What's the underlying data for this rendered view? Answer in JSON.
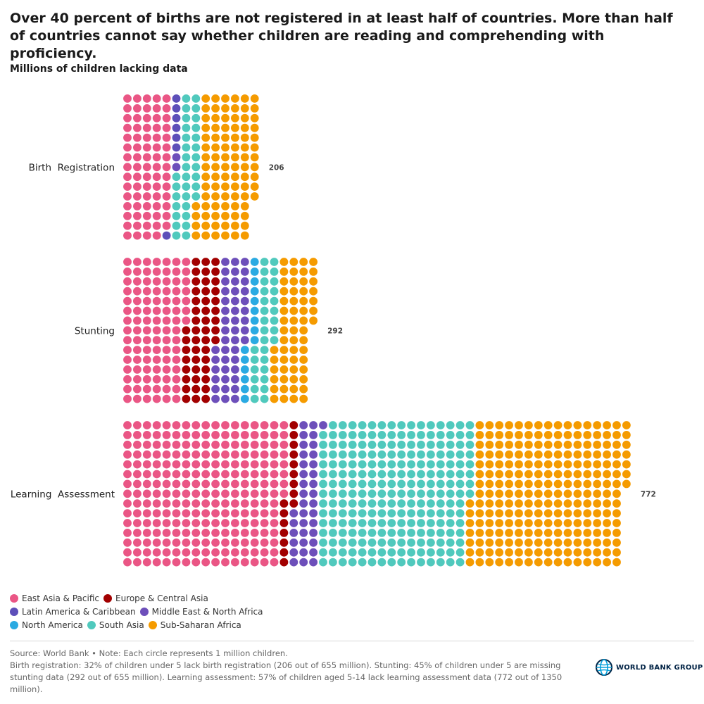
{
  "title": "Over 40 percent of births are not registered in at least half of countries. More than half of countries cannot say whether children are reading and comprehending with proficiency.",
  "subtitle": "Millions of children lacking data",
  "colors": {
    "East Asia & Pacific": "#ea5685",
    "Europe & Central Asia": "#a20000",
    "Latin America & Caribbean": "#5d4fb9",
    "Middle East & North Africa": "#6d4fba",
    "North America": "#2aaae2",
    "South Asia": "#50c9bd",
    "Sub-Saharan Africa": "#f59b00"
  },
  "chart_data": {
    "type": "waffle",
    "unit": "Each circle represents 1 million children",
    "categories": [
      "Birth  Registration",
      "Stunting",
      "Learning  Assessment"
    ],
    "totals": [
      206,
      292,
      772
    ],
    "series": [
      {
        "name": "East Asia & Pacific",
        "values": [
          74,
          97,
          248
        ]
      },
      {
        "name": "Europe & Central Asia",
        "values": [
          0,
          47,
          16
        ]
      },
      {
        "name": "Latin America & Caribbean",
        "values": [
          7,
          0,
          0
        ]
      },
      {
        "name": "Middle East & North Africa",
        "values": [
          2,
          45,
          37
        ]
      },
      {
        "name": "North America",
        "values": [
          0,
          15,
          0
        ]
      },
      {
        "name": "South Asia",
        "values": [
          33,
          30,
          232
        ]
      },
      {
        "name": "Sub-Saharan Africa",
        "values": [
          90,
          58,
          239
        ]
      }
    ]
  },
  "legend": {
    "rows": [
      [
        {
          "label": "East Asia & Pacific",
          "color": "#ea5685"
        },
        {
          "label": "Europe & Central Asia",
          "color": "#a20000"
        }
      ],
      [
        {
          "label": "Latin America & Caribbean",
          "color": "#5d4fb9"
        },
        {
          "label": "Middle East & North Africa",
          "color": "#6d4fba"
        }
      ],
      [
        {
          "label": "North America",
          "color": "#2aaae2"
        },
        {
          "label": "South Asia",
          "color": "#50c9bd"
        },
        {
          "label": "Sub-Saharan Africa",
          "color": "#f59b00"
        }
      ]
    ]
  },
  "footer": {
    "source": "Source: World Bank • Note: Each circle represents 1 million children.",
    "note": "Birth registration: 32% of children under 5 lack birth registration (206 out of 655 million). Stunting: 45% of children under 5 are missing stunting data (292 out of 655 million). Learning assessment: 57% of children aged 5-14 lack learning assessment data (772 out of 1350 million)."
  },
  "logo": {
    "text": "WORLD BANK GROUP"
  }
}
